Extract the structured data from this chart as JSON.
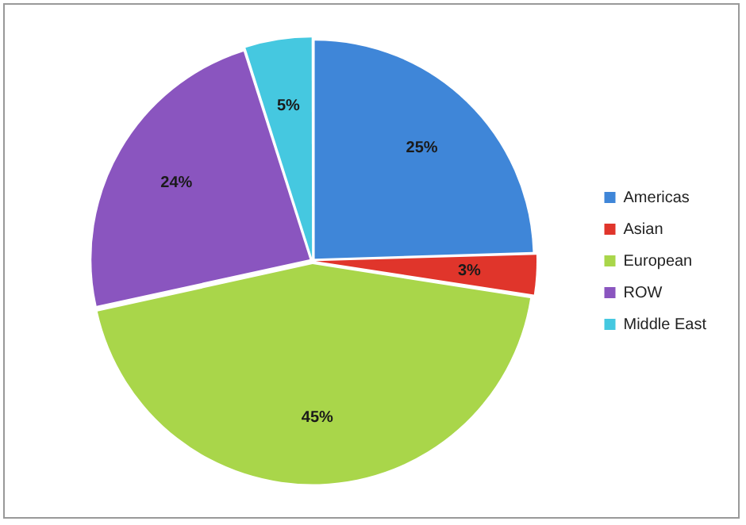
{
  "chart_data": {
    "type": "pie",
    "categories": [
      "Americas",
      "Asian",
      "European",
      "ROW",
      "Middle East"
    ],
    "values": [
      25,
      3,
      45,
      24,
      5
    ],
    "colors": [
      "#3f86d8",
      "#e0352b",
      "#a9d64a",
      "#8a55bf",
      "#45c8e0"
    ],
    "value_labels": [
      "25%",
      "3%",
      "45%",
      "24%",
      "5%"
    ],
    "legend": "right"
  }
}
